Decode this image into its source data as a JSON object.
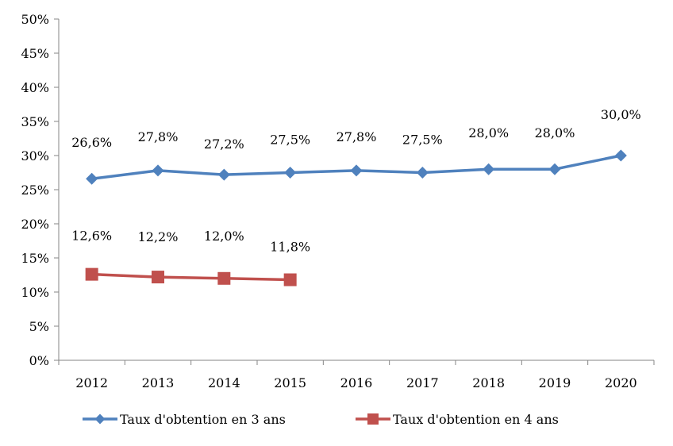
{
  "chart_data": {
    "type": "line",
    "title": "",
    "xlabel": "",
    "ylabel": "",
    "categories": [
      "2012",
      "2013",
      "2014",
      "2015",
      "2016",
      "2017",
      "2018",
      "2019",
      "2020"
    ],
    "ylim": [
      0,
      50
    ],
    "yticks": [
      0,
      5,
      10,
      15,
      20,
      25,
      30,
      35,
      40,
      45,
      50
    ],
    "ytick_labels": [
      "0%",
      "5%",
      "10%",
      "15%",
      "20%",
      "25%",
      "30%",
      "35%",
      "40%",
      "45%",
      "50%"
    ],
    "grid": false,
    "legend_position": "bottom",
    "series": [
      {
        "name": "Taux d'obtention en 3 ans",
        "color": "#4F81BD",
        "marker": "diamond",
        "values": [
          26.6,
          27.8,
          27.2,
          27.5,
          27.8,
          27.5,
          28.0,
          28.0,
          30.0
        ],
        "labels": [
          "26,6%",
          "27,8%",
          "27,2%",
          "27,5%",
          "27,8%",
          "27,5%",
          "28,0%",
          "28,0%",
          "30,0%"
        ]
      },
      {
        "name": "Taux d'obtention en 4 ans",
        "color": "#C0504D",
        "marker": "square",
        "values": [
          12.6,
          12.2,
          12.0,
          11.8,
          null,
          null,
          null,
          null,
          null
        ],
        "labels": [
          "12,6%",
          "12,2%",
          "12,0%",
          "11,8%",
          null,
          null,
          null,
          null,
          null
        ]
      }
    ]
  }
}
